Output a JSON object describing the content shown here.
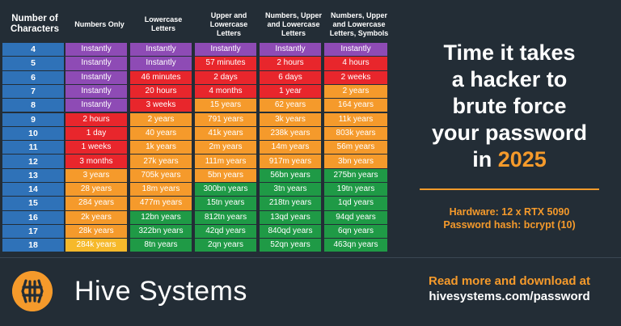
{
  "colors": {
    "purple": "#8e4bb5",
    "red": "#e8262c",
    "orange": "#f59a2b",
    "yellow": "#f6b92b",
    "green": "#1f9a46",
    "blue": "#2f72b8",
    "background": "#232d36"
  },
  "table": {
    "headers": [
      "Number of Characters",
      "Numbers Only",
      "Lowercase Letters",
      "Upper and Lowercase Letters",
      "Numbers, Upper and Lowercase Letters",
      "Numbers, Upper and Lowercase Letters, Symbols"
    ],
    "rows": [
      {
        "chars": "4",
        "cells": [
          [
            "Instantly",
            "purple"
          ],
          [
            "Instantly",
            "purple"
          ],
          [
            "Instantly",
            "purple"
          ],
          [
            "Instantly",
            "purple"
          ],
          [
            "Instantly",
            "purple"
          ]
        ]
      },
      {
        "chars": "5",
        "cells": [
          [
            "Instantly",
            "purple"
          ],
          [
            "Instantly",
            "purple"
          ],
          [
            "57 minutes",
            "red"
          ],
          [
            "2 hours",
            "red"
          ],
          [
            "4 hours",
            "red"
          ]
        ]
      },
      {
        "chars": "6",
        "cells": [
          [
            "Instantly",
            "purple"
          ],
          [
            "46 minutes",
            "red"
          ],
          [
            "2 days",
            "red"
          ],
          [
            "6 days",
            "red"
          ],
          [
            "2 weeks",
            "red"
          ]
        ]
      },
      {
        "chars": "7",
        "cells": [
          [
            "Instantly",
            "purple"
          ],
          [
            "20 hours",
            "red"
          ],
          [
            "4 months",
            "red"
          ],
          [
            "1 year",
            "red"
          ],
          [
            "2 years",
            "orange"
          ]
        ]
      },
      {
        "chars": "8",
        "cells": [
          [
            "Instantly",
            "purple"
          ],
          [
            "3 weeks",
            "red"
          ],
          [
            "15 years",
            "orange"
          ],
          [
            "62 years",
            "orange"
          ],
          [
            "164 years",
            "orange"
          ]
        ]
      },
      {
        "chars": "9",
        "cells": [
          [
            "2 hours",
            "red"
          ],
          [
            "2 years",
            "orange"
          ],
          [
            "791 years",
            "orange"
          ],
          [
            "3k years",
            "orange"
          ],
          [
            "11k years",
            "orange"
          ]
        ]
      },
      {
        "chars": "10",
        "cells": [
          [
            "1 day",
            "red"
          ],
          [
            "40 years",
            "orange"
          ],
          [
            "41k years",
            "orange"
          ],
          [
            "238k years",
            "orange"
          ],
          [
            "803k years",
            "orange"
          ]
        ]
      },
      {
        "chars": "11",
        "cells": [
          [
            "1 weeks",
            "red"
          ],
          [
            "1k years",
            "orange"
          ],
          [
            "2m years",
            "orange"
          ],
          [
            "14m years",
            "orange"
          ],
          [
            "56m years",
            "orange"
          ]
        ]
      },
      {
        "chars": "12",
        "cells": [
          [
            "3 months",
            "red"
          ],
          [
            "27k years",
            "orange"
          ],
          [
            "111m years",
            "orange"
          ],
          [
            "917m years",
            "orange"
          ],
          [
            "3bn years",
            "orange"
          ]
        ]
      },
      {
        "chars": "13",
        "cells": [
          [
            "3 years",
            "orange"
          ],
          [
            "705k years",
            "orange"
          ],
          [
            "5bn years",
            "orange"
          ],
          [
            "56bn years",
            "green"
          ],
          [
            "275bn years",
            "green"
          ]
        ]
      },
      {
        "chars": "14",
        "cells": [
          [
            "28 years",
            "orange"
          ],
          [
            "18m years",
            "orange"
          ],
          [
            "300bn years",
            "green"
          ],
          [
            "3tn years",
            "green"
          ],
          [
            "19tn years",
            "green"
          ]
        ]
      },
      {
        "chars": "15",
        "cells": [
          [
            "284 years",
            "orange"
          ],
          [
            "477m years",
            "orange"
          ],
          [
            "15tn years",
            "green"
          ],
          [
            "218tn years",
            "green"
          ],
          [
            "1qd years",
            "green"
          ]
        ]
      },
      {
        "chars": "16",
        "cells": [
          [
            "2k years",
            "orange"
          ],
          [
            "12bn years",
            "green"
          ],
          [
            "812tn years",
            "green"
          ],
          [
            "13qd years",
            "green"
          ],
          [
            "94qd years",
            "green"
          ]
        ]
      },
      {
        "chars": "17",
        "cells": [
          [
            "28k years",
            "orange"
          ],
          [
            "322bn years",
            "green"
          ],
          [
            "42qd years",
            "green"
          ],
          [
            "840qd years",
            "green"
          ],
          [
            "6qn years",
            "green"
          ]
        ]
      },
      {
        "chars": "18",
        "cells": [
          [
            "284k years",
            "yellow"
          ],
          [
            "8tn years",
            "green"
          ],
          [
            "2qn years",
            "green"
          ],
          [
            "52qn years",
            "green"
          ],
          [
            "463qn years",
            "green"
          ]
        ]
      }
    ]
  },
  "headline": {
    "line1": "Time it takes",
    "line2": "a hacker to",
    "line3": "brute force",
    "line4": "your password",
    "line5_prefix": "in ",
    "year": "2025"
  },
  "hardware": {
    "hardware": "Hardware: 12 x RTX 5090",
    "hash": "Password hash: bcrypt (10)"
  },
  "footer": {
    "brand": "Hive Systems",
    "logo_icon": "hive-logo-icon",
    "read_more": "Read more and download at",
    "url": "hivesystems.com/password"
  }
}
